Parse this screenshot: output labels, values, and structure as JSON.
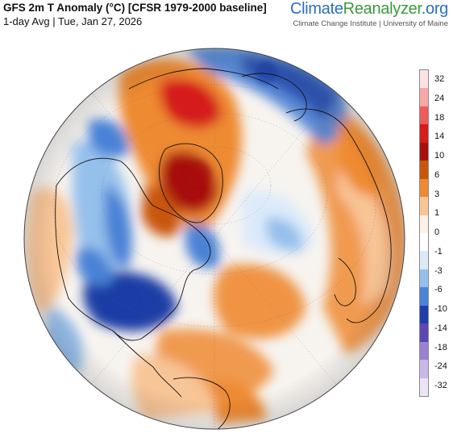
{
  "header": {
    "title": "GFS 2m T Anomaly (°C) [CFSR 1979-2000 baseline]",
    "subtitle": "1-day Avg | Tue, Jan 27, 2026",
    "brand_part1": "Climate",
    "brand_part2": "Reanalyzer",
    "brand_part3": ".org",
    "affiliation": "Climate Change Institute | University of Maine"
  },
  "legend": {
    "labels": [
      "32",
      "24",
      "18",
      "14",
      "10",
      "6",
      "3",
      "1",
      "0",
      "-1",
      "-3",
      "-6",
      "-10",
      "-14",
      "-18",
      "-24",
      "-32"
    ],
    "colors": [
      "#fde4e4",
      "#f7a8a8",
      "#ee5b5b",
      "#d61c1c",
      "#a81010",
      "#c8560a",
      "#ee8a32",
      "#f8c596",
      "#fdf2e8",
      "#ffffff",
      "#dceafa",
      "#96c0ec",
      "#4a82d6",
      "#1f3ea6",
      "#5b48b4",
      "#9a82d2",
      "#c8b8e6",
      "#ece4f6"
    ]
  },
  "colors": {
    "ocean_neutral": "#f6f7fa",
    "warm": "#ee8a32",
    "hot": "#d61c1c",
    "cold": "#4a82d6",
    "very_cold": "#1f3ea6"
  },
  "map_icons": [
    "orthographic-globe",
    "coastlines",
    "country-borders",
    "graticule"
  ]
}
